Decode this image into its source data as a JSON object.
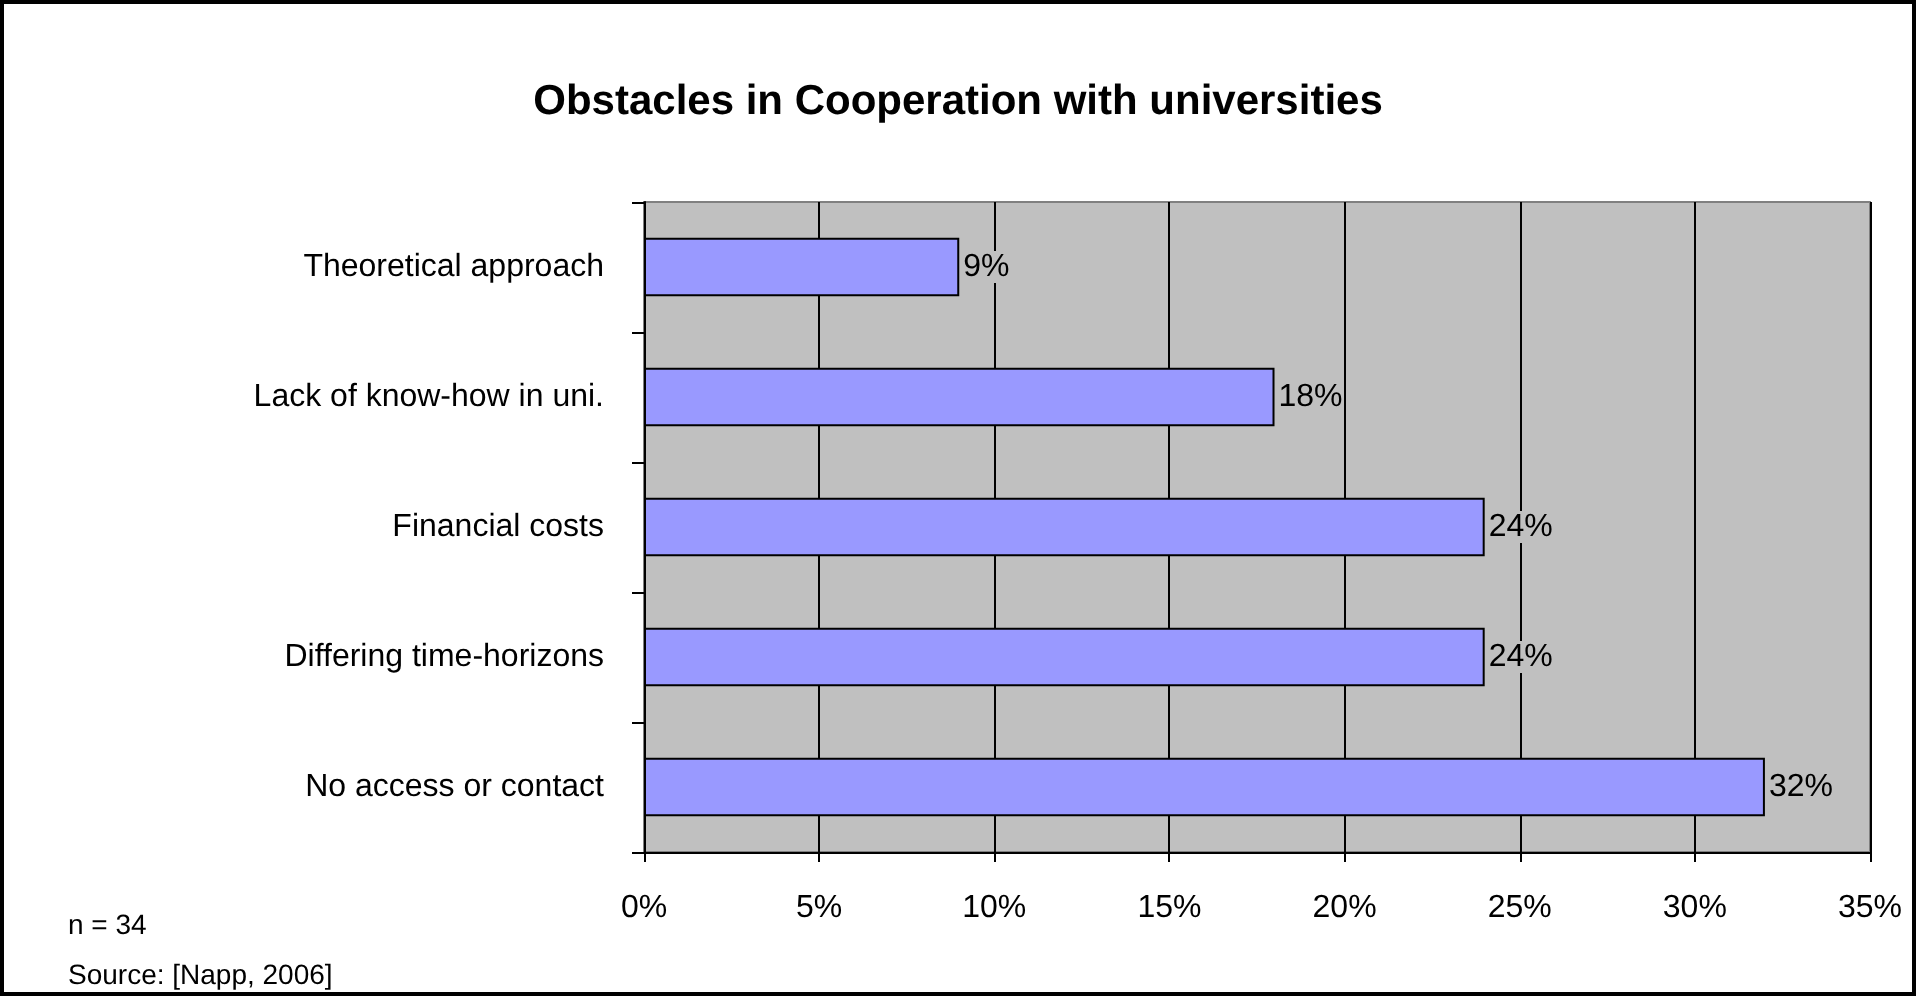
{
  "chart_data": {
    "type": "bar",
    "orientation": "horizontal",
    "title": "Obstacles in Cooperation with universities",
    "categories": [
      "Theoretical approach",
      "Lack of know-how in uni.",
      "Financial costs",
      "Differing time-horizons",
      "No access or contact"
    ],
    "values": [
      9,
      18,
      24,
      24,
      32
    ],
    "value_labels": [
      "9%",
      "18%",
      "24%",
      "24%",
      "32%"
    ],
    "color": "#9999ff",
    "xlim": [
      0,
      35
    ],
    "xticks": [
      {
        "value": 0,
        "label": "0%"
      },
      {
        "value": 5,
        "label": "5%"
      },
      {
        "value": 10,
        "label": "10%"
      },
      {
        "value": 15,
        "label": "15%"
      },
      {
        "value": 20,
        "label": "20%"
      },
      {
        "value": 25,
        "label": "25%"
      },
      {
        "value": 30,
        "label": "30%"
      },
      {
        "value": 35,
        "label": "35%"
      }
    ],
    "grid": "x",
    "annotations": [
      "n = 34",
      "Source: [Napp, 2006]"
    ]
  }
}
